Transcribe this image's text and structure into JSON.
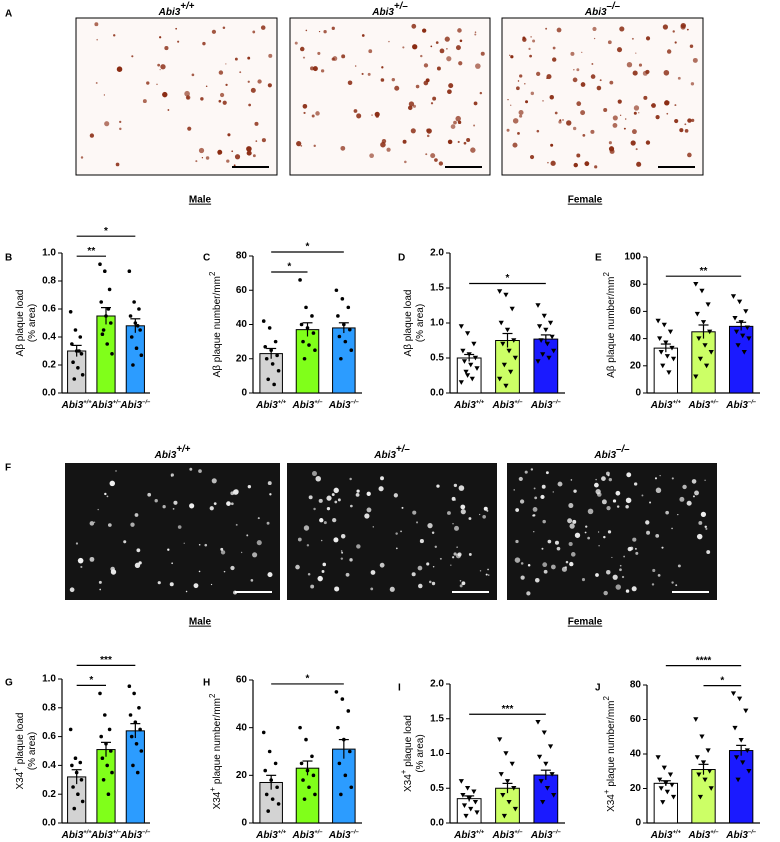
{
  "figure": {
    "images": [
      {
        "label": "A",
        "titles": [
          {
            "gene": "Abi3",
            "sup": "+/+"
          },
          {
            "gene": "Abi3",
            "sup": "+/–"
          },
          {
            "gene": "Abi3",
            "sup": "–/–"
          }
        ]
      },
      {
        "label": "F",
        "titles": [
          {
            "gene": "Abi3",
            "sup": "+/+"
          },
          {
            "gene": "Abi3",
            "sup": "+/–"
          },
          {
            "gene": "Abi3",
            "sup": "–/–"
          }
        ]
      }
    ],
    "headers": [
      [
        "Male",
        "Female"
      ],
      [
        "Male",
        "Female"
      ]
    ]
  },
  "chart_data": [
    {
      "type": "bar",
      "panel": "B",
      "gene": "Abi3",
      "categories": [
        "+/+",
        "+/–",
        "–/–"
      ],
      "ylabel": [
        [
          {
            "text": "Aβ plaque load"
          }
        ],
        [
          {
            "text": "(% area)"
          }
        ]
      ],
      "values": [
        0.3,
        0.55,
        0.48
      ],
      "errors": [
        0.04,
        0.06,
        0.05
      ],
      "colors": [
        "#d3d3d3",
        "#80ff1a",
        "#2c9cff"
      ],
      "marker": "circle",
      "points": [
        [
          0.58,
          0.45,
          0.4,
          0.35,
          0.3,
          0.28,
          0.22,
          0.18,
          0.13,
          0.1,
          0.3
        ],
        [
          0.92,
          0.87,
          0.74,
          0.65,
          0.55,
          0.5,
          0.42,
          0.35,
          0.28,
          0.45,
          0.6
        ],
        [
          0.87,
          0.65,
          0.6,
          0.55,
          0.5,
          0.45,
          0.4,
          0.32,
          0.27,
          0.2,
          0.48
        ]
      ],
      "ylim": [
        0,
        1
      ],
      "yticks": [
        {
          "value": 0,
          "label": "0.0"
        },
        0.2,
        0.4,
        0.6,
        0.8,
        {
          "value": 1,
          "label": "1.0"
        }
      ],
      "annotations": [
        {
          "from": 0,
          "to": 1,
          "text": "**"
        },
        {
          "from": 0,
          "to": 2,
          "text": "*"
        }
      ]
    },
    {
      "type": "bar",
      "panel": "C",
      "gene": "Abi3",
      "categories": [
        "+/+",
        "+/–",
        "–/–"
      ],
      "ylabel": [
        [
          {
            "text": "Aβ plaque number/mm"
          },
          {
            "text": "2",
            "sup": true
          }
        ]
      ],
      "values": [
        23,
        37,
        38
      ],
      "errors": [
        3,
        4,
        3
      ],
      "colors": [
        "#d3d3d3",
        "#80ff1a",
        "#2c9cff"
      ],
      "marker": "circle",
      "points": [
        [
          42,
          38,
          30,
          27,
          25,
          22,
          20,
          17,
          13,
          8,
          5
        ],
        [
          66,
          50,
          45,
          40,
          38,
          35,
          30,
          28,
          25,
          20
        ],
        [
          60,
          55,
          50,
          45,
          40,
          37,
          33,
          30,
          25,
          20
        ]
      ],
      "ylim": [
        0,
        80
      ],
      "yticks": [
        0,
        20,
        40,
        60,
        80
      ],
      "annotations": [
        {
          "from": 0,
          "to": 1,
          "text": "*"
        },
        {
          "from": 0,
          "to": 2,
          "text": "*"
        }
      ]
    },
    {
      "type": "bar",
      "panel": "D",
      "gene": "Abi3",
      "categories": [
        "+/+",
        "+/–",
        "–/–"
      ],
      "ylabel": [
        [
          {
            "text": "Aβ plaque load"
          }
        ],
        [
          {
            "text": "(% area)"
          }
        ]
      ],
      "values": [
        0.5,
        0.75,
        0.77
      ],
      "errors": [
        0.05,
        0.1,
        0.06
      ],
      "colors": [
        "#ffffff",
        "#ccff66",
        "#1a1aff"
      ],
      "marker": "triangle",
      "points": [
        [
          0.95,
          0.85,
          0.7,
          0.6,
          0.55,
          0.5,
          0.45,
          0.4,
          0.35,
          0.3,
          0.2,
          0.15,
          0.25
        ],
        [
          1.45,
          1.4,
          1.2,
          1.0,
          0.9,
          0.75,
          0.7,
          0.6,
          0.5,
          0.4,
          0.3,
          0.2,
          0.1
        ],
        [
          1.25,
          1.1,
          1.0,
          0.95,
          0.9,
          0.8,
          0.75,
          0.7,
          0.6,
          0.55,
          0.5,
          0.45
        ]
      ],
      "ylim": [
        0,
        2
      ],
      "yticks": [
        {
          "value": 0,
          "label": "0.0"
        },
        0.5,
        {
          "value": 1,
          "label": "1.0"
        },
        1.5,
        {
          "value": 2,
          "label": "2.0"
        }
      ],
      "annotations": [
        {
          "from": 0,
          "to": 2,
          "text": "*"
        }
      ]
    },
    {
      "type": "bar",
      "panel": "E",
      "gene": "Abi3",
      "categories": [
        "+/+",
        "+/–",
        "–/–"
      ],
      "ylabel": [
        [
          {
            "text": "Aβ plaque number/mm"
          },
          {
            "text": "2",
            "sup": true
          }
        ]
      ],
      "values": [
        33,
        45,
        49
      ],
      "errors": [
        3,
        5,
        3
      ],
      "colors": [
        "#ffffff",
        "#ccff66",
        "#1a1aff"
      ],
      "marker": "triangle",
      "points": [
        [
          53,
          50,
          45,
          40,
          37,
          33,
          30,
          27,
          25,
          20,
          15
        ],
        [
          80,
          75,
          65,
          58,
          52,
          45,
          40,
          35,
          30,
          25,
          20,
          12
        ],
        [
          71,
          67,
          60,
          55,
          52,
          48,
          45,
          42,
          40,
          35,
          30
        ]
      ],
      "ylim": [
        0,
        100
      ],
      "yticks": [
        0,
        20,
        40,
        60,
        80,
        100
      ],
      "annotations": [
        {
          "from": 0,
          "to": 2,
          "text": "**"
        }
      ]
    },
    {
      "type": "bar",
      "panel": "G",
      "gene": "Abi3",
      "categories": [
        "+/+",
        "+/–",
        "–/–"
      ],
      "ylabel": [
        [
          {
            "text": "X34"
          },
          {
            "text": "+",
            "sup": true
          },
          {
            "text": " plaque load"
          }
        ],
        [
          {
            "text": "(% area)"
          }
        ]
      ],
      "values": [
        0.32,
        0.51,
        0.64
      ],
      "errors": [
        0.05,
        0.05,
        0.05
      ],
      "colors": [
        "#d3d3d3",
        "#80ff1a",
        "#2c9cff"
      ],
      "marker": "circle",
      "points": [
        [
          0.65,
          0.45,
          0.42,
          0.4,
          0.35,
          0.3,
          0.25,
          0.2,
          0.15,
          0.1
        ],
        [
          0.9,
          0.75,
          0.65,
          0.6,
          0.55,
          0.5,
          0.45,
          0.4,
          0.35,
          0.3,
          0.2
        ],
        [
          0.95,
          0.9,
          0.8,
          0.75,
          0.7,
          0.65,
          0.6,
          0.55,
          0.5,
          0.4,
          0.35
        ]
      ],
      "ylim": [
        0,
        1
      ],
      "yticks": [
        {
          "value": 0,
          "label": "0.0"
        },
        0.2,
        0.4,
        0.6,
        0.8,
        {
          "value": 1,
          "label": "1.0"
        }
      ],
      "annotations": [
        {
          "from": 0,
          "to": 1,
          "text": "*"
        },
        {
          "from": 0,
          "to": 2,
          "text": "***"
        }
      ]
    },
    {
      "type": "bar",
      "panel": "H",
      "gene": "Abi3",
      "categories": [
        "+/+",
        "+/–",
        "–/–"
      ],
      "ylabel": [
        [
          {
            "text": "X34"
          },
          {
            "text": "+",
            "sup": true
          },
          {
            "text": " plaque number/mm"
          },
          {
            "text": "2",
            "sup": true
          }
        ]
      ],
      "values": [
        17,
        23,
        31
      ],
      "errors": [
        3,
        3,
        4
      ],
      "colors": [
        "#d3d3d3",
        "#80ff1a",
        "#2c9cff"
      ],
      "marker": "circle",
      "points": [
        [
          38,
          30,
          25,
          22,
          18,
          15,
          12,
          10,
          8,
          5
        ],
        [
          40,
          35,
          28,
          25,
          22,
          20,
          18,
          15,
          12,
          10
        ],
        [
          55,
          52,
          47,
          40,
          35,
          30,
          25,
          20,
          15,
          12
        ]
      ],
      "ylim": [
        0,
        60
      ],
      "yticks": [
        0,
        20,
        40,
        60
      ],
      "annotations": [
        {
          "from": 0,
          "to": 2,
          "text": "*"
        }
      ]
    },
    {
      "type": "bar",
      "panel": "I",
      "gene": "Abi3",
      "categories": [
        "+/+",
        "+/–",
        "–/–"
      ],
      "ylabel": [
        [
          {
            "text": "X34"
          },
          {
            "text": "+",
            "sup": true
          },
          {
            "text": " plaque load"
          }
        ],
        [
          {
            "text": "(% area)"
          }
        ]
      ],
      "values": [
        0.35,
        0.5,
        0.69
      ],
      "errors": [
        0.04,
        0.07,
        0.07
      ],
      "colors": [
        "#ffffff",
        "#ccff66",
        "#1a1aff"
      ],
      "marker": "triangle",
      "points": [
        [
          0.6,
          0.5,
          0.45,
          0.4,
          0.35,
          0.3,
          0.25,
          0.2,
          0.15,
          0.1
        ],
        [
          1.2,
          1.0,
          0.85,
          0.7,
          0.6,
          0.5,
          0.4,
          0.3,
          0.2,
          0.1
        ],
        [
          1.45,
          1.3,
          1.1,
          0.95,
          0.85,
          0.7,
          0.6,
          0.5,
          0.4,
          0.3
        ]
      ],
      "ylim": [
        0,
        2
      ],
      "yticks": [
        {
          "value": 0,
          "label": "0.0"
        },
        0.5,
        {
          "value": 1,
          "label": "1.0"
        },
        1.5,
        {
          "value": 2,
          "label": "2.0"
        }
      ],
      "annotations": [
        {
          "from": 0,
          "to": 2,
          "text": "***"
        }
      ]
    },
    {
      "type": "bar",
      "panel": "J",
      "gene": "Abi3",
      "categories": [
        "+/+",
        "+/–",
        "–/–"
      ],
      "ylabel": [
        [
          {
            "text": "X34"
          },
          {
            "text": "+",
            "sup": true
          },
          {
            "text": " plaque number/mm"
          },
          {
            "text": "2",
            "sup": true
          }
        ]
      ],
      "values": [
        23,
        31,
        42
      ],
      "errors": [
        1.5,
        3,
        3
      ],
      "colors": [
        "#ffffff",
        "#ccff66",
        "#1a1aff"
      ],
      "marker": "triangle",
      "points": [
        [
          38,
          32,
          28,
          25,
          23,
          22,
          20,
          18,
          15,
          12
        ],
        [
          60,
          50,
          42,
          38,
          35,
          30,
          28,
          25,
          20,
          15
        ],
        [
          75,
          72,
          65,
          55,
          48,
          42,
          38,
          35,
          30,
          25
        ]
      ],
      "ylim": [
        0,
        80
      ],
      "yticks": [
        0,
        20,
        40,
        60,
        80
      ],
      "annotations": [
        {
          "from": 1,
          "to": 2,
          "text": "*"
        },
        {
          "from": 0,
          "to": 2,
          "text": "****"
        }
      ]
    }
  ]
}
